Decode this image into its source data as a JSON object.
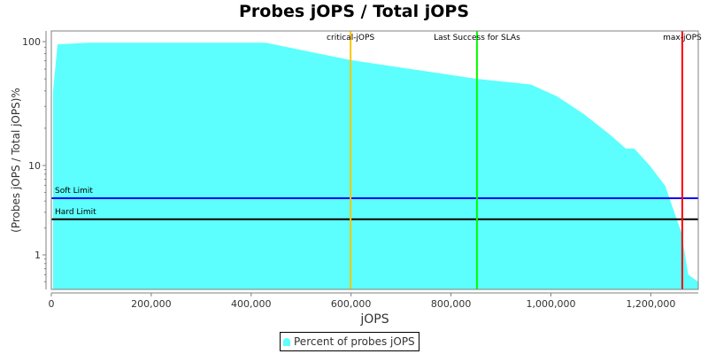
{
  "title": "Probes jOPS / Total jOPS",
  "chart_data": {
    "type": "area",
    "title": "Probes jOPS / Total jOPS",
    "xlabel": "jOPS",
    "ylabel": "(Probes jOPS / Total jOPS)%",
    "x_range": [
      0,
      1295000
    ],
    "y_scale": "log",
    "y_ticks": [
      1,
      10,
      100
    ],
    "x_ticks": [
      0,
      200000,
      400000,
      600000,
      800000,
      1000000,
      1200000
    ],
    "x_tick_labels": [
      "0",
      "200,000",
      "400,000",
      "600,000",
      "800,000",
      "1,000,000",
      "1,200,000"
    ],
    "y_tick_labels": [
      "1",
      "10",
      "100"
    ],
    "grid": false,
    "legend_position": "bottom",
    "series": [
      {
        "name": "Percent of probes jOPS",
        "color": "#5cfffd",
        "x": [
          3500,
          12400,
          75000,
          429000,
          599000,
          852000,
          960000,
          1013000,
          1066000,
          1120000,
          1150000,
          1167000,
          1199000,
          1229000,
          1247000,
          1261000,
          1275000,
          1295000
        ],
        "y": [
          40,
          95,
          98,
          98,
          71,
          50,
          45,
          36,
          26,
          17.5,
          13.7,
          13.7,
          9.8,
          5.9,
          3.0,
          1.8,
          0.6,
          0.5
        ]
      }
    ],
    "vertical_markers": [
      {
        "label": "critical-jOPS",
        "x": 599000,
        "color": "#ffc800"
      },
      {
        "label": "Last Success for SLAs",
        "x": 852000,
        "color": "#00ff00"
      },
      {
        "label": "max-jOPS",
        "x": 1263000,
        "color": "#ff0000"
      }
    ],
    "horizontal_markers": [
      {
        "label": "Soft Limit",
        "y": 4.3,
        "color": "#0000ff"
      },
      {
        "label": "Hard Limit",
        "y": 2.5,
        "color": "#000000"
      }
    ]
  },
  "legend": {
    "label": "Percent of probes jOPS"
  }
}
